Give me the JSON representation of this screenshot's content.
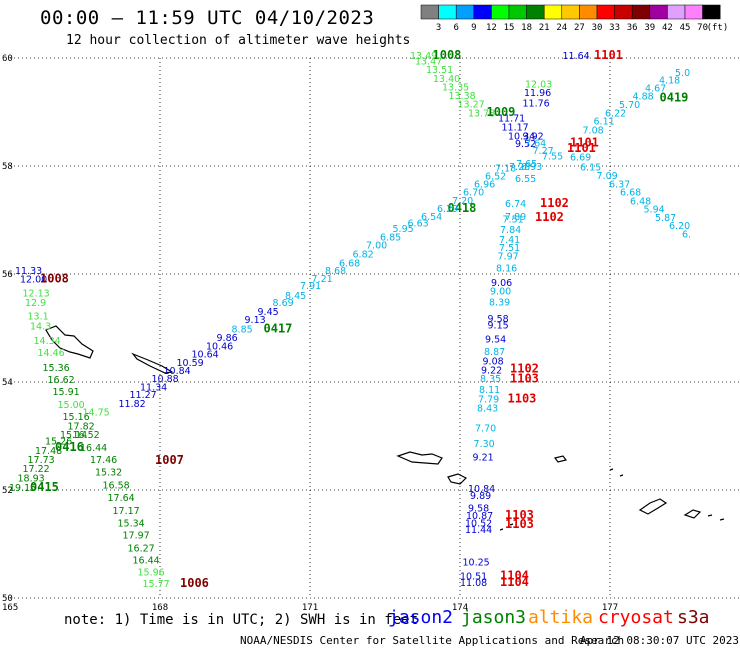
{
  "header": {
    "title": "00:00 – 11:59 UTC 04/10/2023",
    "subtitle": "12 hour collection of altimeter wave heights"
  },
  "legend": {
    "unit": "(ft)",
    "bins": [
      {
        "label": "3",
        "color": "#808080"
      },
      {
        "label": "6",
        "color": "#00ffff"
      },
      {
        "label": "9",
        "color": "#00a0ff"
      },
      {
        "label": "12",
        "color": "#0000ff"
      },
      {
        "label": "15",
        "color": "#00ff00"
      },
      {
        "label": "18",
        "color": "#00c800"
      },
      {
        "label": "21",
        "color": "#008000"
      },
      {
        "label": "24",
        "color": "#ffff00"
      },
      {
        "label": "27",
        "color": "#ffc800"
      },
      {
        "label": "30",
        "color": "#ff8c00"
      },
      {
        "label": "33",
        "color": "#ff0000"
      },
      {
        "label": "36",
        "color": "#c80000"
      },
      {
        "label": "39",
        "color": "#800000"
      },
      {
        "label": "42",
        "color": "#a000a0"
      },
      {
        "label": "45",
        "color": "#e0a0ff"
      },
      {
        "label": "70",
        "color": "#ff80ff"
      },
      {
        "label": "",
        "color": "#000000"
      }
    ]
  },
  "axes": {
    "lat_labels": [
      "60",
      "58",
      "56",
      "54",
      "52",
      "50"
    ],
    "lon_labels": [
      "165",
      "168",
      "171",
      "174",
      "177"
    ]
  },
  "footer": {
    "note": "note: 1) Time is in UTC; 2) SWH is in feet",
    "satellites": [
      {
        "name": "jason2",
        "color": "#0000ff"
      },
      {
        "name": "jason3",
        "color": "#008000"
      },
      {
        "name": "altika",
        "color": "#ff8c00"
      },
      {
        "name": "cryosat",
        "color": "#ff0000"
      },
      {
        "name": "s3a",
        "color": "#800000"
      }
    ],
    "credit": "NOAA/NESDIS Center for Satellite Applications and Research",
    "generated": "Apr 12 08:30:07 UTC 2023"
  },
  "colors": {
    "cyan": "#00b4e6",
    "blue": "#0000d0",
    "lightgreen": "#40e040",
    "green": "#008000",
    "red": "#e00000",
    "darkred": "#800000"
  },
  "wave_labels": [
    {
      "text": "13.49",
      "lon": 173.0,
      "lat": 59.98,
      "c": "lightgreen"
    },
    {
      "text": "1008",
      "lon": 173.45,
      "lat": 59.98,
      "c": "green"
    },
    {
      "text": "13.47",
      "lon": 173.1,
      "lat": 59.88,
      "c": "lightgreen"
    },
    {
      "text": "13.51",
      "lon": 173.32,
      "lat": 59.72,
      "c": "lightgreen"
    },
    {
      "text": "13.40",
      "lon": 173.46,
      "lat": 59.56,
      "c": "lightgreen"
    },
    {
      "text": "13.35",
      "lon": 173.64,
      "lat": 59.4,
      "c": "lightgreen"
    },
    {
      "text": "13.38",
      "lon": 173.77,
      "lat": 59.24,
      "c": "lightgreen"
    },
    {
      "text": "13.27",
      "lon": 173.95,
      "lat": 59.08,
      "c": "lightgreen"
    },
    {
      "text": "13.78",
      "lon": 174.16,
      "lat": 58.92,
      "c": "lightgreen"
    },
    {
      "text": "1009",
      "lon": 174.53,
      "lat": 58.93,
      "c": "green"
    },
    {
      "text": "11.64",
      "lon": 176.05,
      "lat": 59.98,
      "c": "blue"
    },
    {
      "text": "1101",
      "lon": 176.68,
      "lat": 59.98,
      "c": "red"
    },
    {
      "text": "12.03",
      "lon": 175.3,
      "lat": 59.45,
      "c": "lightgreen"
    },
    {
      "text": "11.96",
      "lon": 175.28,
      "lat": 59.3,
      "c": "blue"
    },
    {
      "text": "11.76",
      "lon": 175.25,
      "lat": 59.1,
      "c": "blue"
    },
    {
      "text": "11.71",
      "lon": 174.76,
      "lat": 58.82,
      "c": "blue"
    },
    {
      "text": "11.17",
      "lon": 174.83,
      "lat": 58.66,
      "c": "blue"
    },
    {
      "text": "10.34",
      "lon": 174.96,
      "lat": 58.49,
      "c": "blue"
    },
    {
      "text": "9.92",
      "lon": 175.25,
      "lat": 58.49,
      "c": "blue"
    },
    {
      "text": "9.52",
      "lon": 175.1,
      "lat": 58.35,
      "c": "blue"
    },
    {
      "text": "1101",
      "lon": 176.2,
      "lat": 58.36,
      "c": "red"
    },
    {
      "text": "1101",
      "lon": 176.14,
      "lat": 58.26,
      "c": "red"
    },
    {
      "text": "7.64",
      "lon": 175.3,
      "lat": 58.36,
      "c": "cyan"
    },
    {
      "text": "7.55",
      "lon": 175.64,
      "lat": 58.12,
      "c": "cyan"
    },
    {
      "text": "7.27",
      "lon": 175.45,
      "lat": 58.22,
      "c": "cyan"
    },
    {
      "text": "7.65",
      "lon": 175.12,
      "lat": 57.98,
      "c": "cyan"
    },
    {
      "text": "6.93",
      "lon": 175.22,
      "lat": 57.93,
      "c": "cyan"
    },
    {
      "text": "7.28",
      "lon": 174.98,
      "lat": 57.93,
      "c": "cyan"
    },
    {
      "text": "6.55",
      "lon": 175.1,
      "lat": 57.7,
      "c": "cyan"
    },
    {
      "text": "7.08",
      "lon": 176.45,
      "lat": 58.6,
      "c": "cyan"
    },
    {
      "text": "6.11",
      "lon": 176.67,
      "lat": 58.77,
      "c": "cyan"
    },
    {
      "text": "6.22",
      "lon": 176.9,
      "lat": 58.92,
      "c": "cyan"
    },
    {
      "text": "5.70",
      "lon": 177.18,
      "lat": 59.07,
      "c": "cyan"
    },
    {
      "text": "4.88",
      "lon": 177.45,
      "lat": 59.23,
      "c": "cyan"
    },
    {
      "text": "4.67",
      "lon": 177.7,
      "lat": 59.38,
      "c": "cyan"
    },
    {
      "text": "0419",
      "lon": 177.99,
      "lat": 59.19,
      "c": "green"
    },
    {
      "text": "4.18",
      "lon": 177.98,
      "lat": 59.53,
      "c": "cyan"
    },
    {
      "text": "5.0",
      "lon": 178.3,
      "lat": 59.67,
      "c": "cyan"
    },
    {
      "text": "6.69",
      "lon": 176.2,
      "lat": 58.1,
      "c": "cyan"
    },
    {
      "text": "6.15",
      "lon": 176.4,
      "lat": 57.92,
      "c": "cyan"
    },
    {
      "text": "7.09",
      "lon": 176.73,
      "lat": 57.76,
      "c": "cyan"
    },
    {
      "text": "6.37",
      "lon": 176.98,
      "lat": 57.6,
      "c": "cyan"
    },
    {
      "text": "6.68",
      "lon": 177.2,
      "lat": 57.45,
      "c": "cyan"
    },
    {
      "text": "6.48",
      "lon": 177.4,
      "lat": 57.29,
      "c": "cyan"
    },
    {
      "text": "5.94",
      "lon": 177.67,
      "lat": 57.14,
      "c": "cyan"
    },
    {
      "text": "5.87",
      "lon": 177.9,
      "lat": 56.98,
      "c": "cyan"
    },
    {
      "text": "6.20",
      "lon": 178.18,
      "lat": 56.83,
      "c": "cyan"
    },
    {
      "text": "6.",
      "lon": 178.44,
      "lat": 56.68,
      "c": "cyan"
    },
    {
      "text": "7.18",
      "lon": 174.7,
      "lat": 57.9,
      "c": "cyan"
    },
    {
      "text": "6.52",
      "lon": 174.5,
      "lat": 57.75,
      "c": "cyan"
    },
    {
      "text": "6.96",
      "lon": 174.28,
      "lat": 57.6,
      "c": "cyan"
    },
    {
      "text": "6.70",
      "lon": 174.06,
      "lat": 57.45,
      "c": "cyan"
    },
    {
      "text": "7.20",
      "lon": 173.84,
      "lat": 57.3,
      "c": "cyan"
    },
    {
      "text": "0418",
      "lon": 173.75,
      "lat": 57.15,
      "c": "green"
    },
    {
      "text": "6.29",
      "lon": 173.54,
      "lat": 57.15,
      "c": "cyan"
    },
    {
      "text": "6.54",
      "lon": 173.22,
      "lat": 57.0,
      "c": "cyan"
    },
    {
      "text": "6.63",
      "lon": 172.95,
      "lat": 56.88,
      "c": "cyan"
    },
    {
      "text": "5.95",
      "lon": 172.65,
      "lat": 56.78,
      "c": "cyan"
    },
    {
      "text": "6.85",
      "lon": 172.4,
      "lat": 56.62,
      "c": "cyan"
    },
    {
      "text": "7.00",
      "lon": 172.12,
      "lat": 56.47,
      "c": "cyan"
    },
    {
      "text": "6.82",
      "lon": 171.85,
      "lat": 56.31,
      "c": "cyan"
    },
    {
      "text": "6.68",
      "lon": 171.58,
      "lat": 56.14,
      "c": "cyan"
    },
    {
      "text": "8.68",
      "lon": 171.3,
      "lat": 56.0,
      "c": "cyan"
    },
    {
      "text": "7.21",
      "lon": 171.03,
      "lat": 55.85,
      "c": "cyan"
    },
    {
      "text": "7.91",
      "lon": 170.8,
      "lat": 55.72,
      "c": "cyan"
    },
    {
      "text": "8.45",
      "lon": 170.5,
      "lat": 55.54,
      "c": "cyan"
    },
    {
      "text": "8.69",
      "lon": 170.25,
      "lat": 55.41,
      "c": "cyan"
    },
    {
      "text": "9.45",
      "lon": 169.95,
      "lat": 55.24,
      "c": "blue"
    },
    {
      "text": "9.13",
      "lon": 169.69,
      "lat": 55.09,
      "c": "blue"
    },
    {
      "text": "8.85",
      "lon": 169.43,
      "lat": 54.92,
      "c": "cyan"
    },
    {
      "text": "0417",
      "lon": 170.07,
      "lat": 54.92,
      "c": "green"
    },
    {
      "text": "9.86",
      "lon": 169.13,
      "lat": 54.76,
      "c": "blue"
    },
    {
      "text": "10.46",
      "lon": 168.92,
      "lat": 54.6,
      "c": "blue"
    },
    {
      "text": "10.64",
      "lon": 168.63,
      "lat": 54.45,
      "c": "blue"
    },
    {
      "text": "10.59",
      "lon": 168.33,
      "lat": 54.3,
      "c": "blue"
    },
    {
      "text": "10.84",
      "lon": 168.07,
      "lat": 54.15,
      "c": "blue"
    },
    {
      "text": "10.88",
      "lon": 167.83,
      "lat": 54.0,
      "c": "blue"
    },
    {
      "text": "11.34",
      "lon": 167.6,
      "lat": 53.84,
      "c": "blue"
    },
    {
      "text": "11.27",
      "lon": 167.39,
      "lat": 53.7,
      "c": "blue"
    },
    {
      "text": "11.82",
      "lon": 167.17,
      "lat": 53.54,
      "c": "blue"
    },
    {
      "text": "11.33",
      "lon": 165.1,
      "lat": 56.0,
      "c": "blue"
    },
    {
      "text": "12.00",
      "lon": 165.2,
      "lat": 55.84,
      "c": "blue"
    },
    {
      "text": "1008",
      "lon": 165.6,
      "lat": 55.84,
      "c": "darkred"
    },
    {
      "text": "12.13",
      "lon": 165.25,
      "lat": 55.58,
      "c": "lightgreen"
    },
    {
      "text": "12.9",
      "lon": 165.3,
      "lat": 55.41,
      "c": "lightgreen"
    },
    {
      "text": "13.1",
      "lon": 165.35,
      "lat": 55.16,
      "c": "lightgreen"
    },
    {
      "text": "14.3",
      "lon": 165.4,
      "lat": 54.97,
      "c": "lightgreen"
    },
    {
      "text": "14.34",
      "lon": 165.47,
      "lat": 54.7,
      "c": "lightgreen"
    },
    {
      "text": "14.46",
      "lon": 165.55,
      "lat": 54.48,
      "c": "lightgreen"
    },
    {
      "text": "15.36",
      "lon": 165.65,
      "lat": 54.2,
      "c": "green"
    },
    {
      "text": "16.62",
      "lon": 165.75,
      "lat": 53.98,
      "c": "green"
    },
    {
      "text": "15.91",
      "lon": 165.85,
      "lat": 53.76,
      "c": "green"
    },
    {
      "text": "15.00",
      "lon": 165.95,
      "lat": 53.52,
      "c": "lightgreen"
    },
    {
      "text": "15.16",
      "lon": 166.05,
      "lat": 53.3,
      "c": "green"
    },
    {
      "text": "14.75",
      "lon": 166.45,
      "lat": 53.38,
      "c": "lightgreen"
    },
    {
      "text": "17.82",
      "lon": 166.15,
      "lat": 53.12,
      "c": "green"
    },
    {
      "text": "15.14",
      "lon": 166.0,
      "lat": 52.96,
      "c": "green"
    },
    {
      "text": "16.52",
      "lon": 166.25,
      "lat": 52.96,
      "c": "green"
    },
    {
      "text": "15.26",
      "lon": 165.7,
      "lat": 52.84,
      "c": "green"
    },
    {
      "text": "17.48",
      "lon": 165.5,
      "lat": 52.67,
      "c": "green"
    },
    {
      "text": "0416",
      "lon": 165.9,
      "lat": 52.72,
      "c": "green"
    },
    {
      "text": "16.44",
      "lon": 166.4,
      "lat": 52.72,
      "c": "green"
    },
    {
      "text": "17.73",
      "lon": 165.35,
      "lat": 52.5,
      "c": "green"
    },
    {
      "text": "17.22",
      "lon": 165.25,
      "lat": 52.33,
      "c": "green"
    },
    {
      "text": "18.93",
      "lon": 165.15,
      "lat": 52.16,
      "c": "green"
    },
    {
      "text": "19.15",
      "lon": 164.98,
      "lat": 51.98,
      "c": "green"
    },
    {
      "text": "0415",
      "lon": 165.4,
      "lat": 51.98,
      "c": "green"
    },
    {
      "text": "17.46",
      "lon": 166.6,
      "lat": 52.5,
      "c": "green"
    },
    {
      "text": "1007",
      "lon": 167.9,
      "lat": 52.48,
      "c": "darkred"
    },
    {
      "text": "15.32",
      "lon": 166.7,
      "lat": 52.27,
      "c": "green"
    },
    {
      "text": "16.58",
      "lon": 166.85,
      "lat": 52.03,
      "c": "green"
    },
    {
      "text": "17.64",
      "lon": 166.95,
      "lat": 51.8,
      "c": "green"
    },
    {
      "text": "17.17",
      "lon": 167.05,
      "lat": 51.56,
      "c": "green"
    },
    {
      "text": "15.34",
      "lon": 167.15,
      "lat": 51.32,
      "c": "green"
    },
    {
      "text": "17.97",
      "lon": 167.25,
      "lat": 51.1,
      "c": "green"
    },
    {
      "text": "16.27",
      "lon": 167.35,
      "lat": 50.86,
      "c": "green"
    },
    {
      "text": "16.44",
      "lon": 167.45,
      "lat": 50.64,
      "c": "green"
    },
    {
      "text": "15.96",
      "lon": 167.55,
      "lat": 50.42,
      "c": "lightgreen"
    },
    {
      "text": "15.77",
      "lon": 167.65,
      "lat": 50.2,
      "c": "lightgreen"
    },
    {
      "text": "1006",
      "lon": 168.4,
      "lat": 50.2,
      "c": "darkred"
    },
    {
      "text": "6.74",
      "lon": 174.9,
      "lat": 57.24,
      "c": "cyan"
    },
    {
      "text": "1102",
      "lon": 175.6,
      "lat": 57.24,
      "c": "red"
    },
    {
      "text": "7.89",
      "lon": 174.9,
      "lat": 57.0,
      "c": "cyan"
    },
    {
      "text": "1102",
      "lon": 175.5,
      "lat": 56.98,
      "c": "red"
    },
    {
      "text": "7.51",
      "lon": 174.85,
      "lat": 56.95,
      "c": "cyan"
    },
    {
      "text": "7.84",
      "lon": 174.8,
      "lat": 56.76,
      "c": "cyan"
    },
    {
      "text": "7.41",
      "lon": 174.78,
      "lat": 56.57,
      "c": "cyan"
    },
    {
      "text": "7.51",
      "lon": 174.78,
      "lat": 56.43,
      "c": "cyan"
    },
    {
      "text": "7.97",
      "lon": 174.75,
      "lat": 56.27,
      "c": "cyan"
    },
    {
      "text": "8.16",
      "lon": 174.72,
      "lat": 56.05,
      "c": "cyan"
    },
    {
      "text": "9.06",
      "lon": 174.62,
      "lat": 55.78,
      "c": "blue"
    },
    {
      "text": "9.00",
      "lon": 174.6,
      "lat": 55.62,
      "c": "cyan"
    },
    {
      "text": "8.39",
      "lon": 174.58,
      "lat": 55.42,
      "c": "cyan"
    },
    {
      "text": "9.58",
      "lon": 174.55,
      "lat": 55.11,
      "c": "blue"
    },
    {
      "text": "9.15",
      "lon": 174.55,
      "lat": 54.99,
      "c": "blue"
    },
    {
      "text": "9.54",
      "lon": 174.5,
      "lat": 54.73,
      "c": "blue"
    },
    {
      "text": "8.87",
      "lon": 174.48,
      "lat": 54.5,
      "c": "cyan"
    },
    {
      "text": "9.08",
      "lon": 174.45,
      "lat": 54.32,
      "c": "blue"
    },
    {
      "text": "9.22",
      "lon": 174.42,
      "lat": 54.16,
      "c": "blue"
    },
    {
      "text": "1102",
      "lon": 175.0,
      "lat": 54.18,
      "c": "red"
    },
    {
      "text": "8.35",
      "lon": 174.4,
      "lat": 54.0,
      "c": "cyan"
    },
    {
      "text": "1103",
      "lon": 175.0,
      "lat": 53.99,
      "c": "red"
    },
    {
      "text": "8.11",
      "lon": 174.38,
      "lat": 53.8,
      "c": "cyan"
    },
    {
      "text": "7.79",
      "lon": 174.36,
      "lat": 53.62,
      "c": "cyan"
    },
    {
      "text": "1103",
      "lon": 174.95,
      "lat": 53.62,
      "c": "red"
    },
    {
      "text": "8.43",
      "lon": 174.34,
      "lat": 53.45,
      "c": "cyan"
    },
    {
      "text": "7.70",
      "lon": 174.3,
      "lat": 53.08,
      "c": "cyan"
    },
    {
      "text": "7.30",
      "lon": 174.27,
      "lat": 52.8,
      "c": "cyan"
    },
    {
      "text": "9.21",
      "lon": 174.25,
      "lat": 52.55,
      "c": "blue"
    },
    {
      "text": "10.84",
      "lon": 174.16,
      "lat": 51.96,
      "c": "blue"
    },
    {
      "text": "9.89",
      "lon": 174.2,
      "lat": 51.83,
      "c": "blue"
    },
    {
      "text": "9.58",
      "lon": 174.16,
      "lat": 51.6,
      "c": "blue"
    },
    {
      "text": "10.87",
      "lon": 174.12,
      "lat": 51.46,
      "c": "blue"
    },
    {
      "text": "1103",
      "lon": 174.9,
      "lat": 51.46,
      "c": "red"
    },
    {
      "text": "10.52",
      "lon": 174.1,
      "lat": 51.32,
      "c": "blue"
    },
    {
      "text": "1103",
      "lon": 174.9,
      "lat": 51.3,
      "c": "red"
    },
    {
      "text": "11.44",
      "lon": 174.1,
      "lat": 51.2,
      "c": "blue"
    },
    {
      "text": "10.25",
      "lon": 174.05,
      "lat": 50.6,
      "c": "blue"
    },
    {
      "text": "10.51",
      "lon": 174.0,
      "lat": 50.34,
      "c": "blue"
    },
    {
      "text": "1104",
      "lon": 174.8,
      "lat": 50.34,
      "c": "red"
    },
    {
      "text": "11.08",
      "lon": 174.0,
      "lat": 50.22,
      "c": "blue"
    },
    {
      "text": "1104",
      "lon": 174.8,
      "lat": 50.22,
      "c": "red"
    }
  ]
}
